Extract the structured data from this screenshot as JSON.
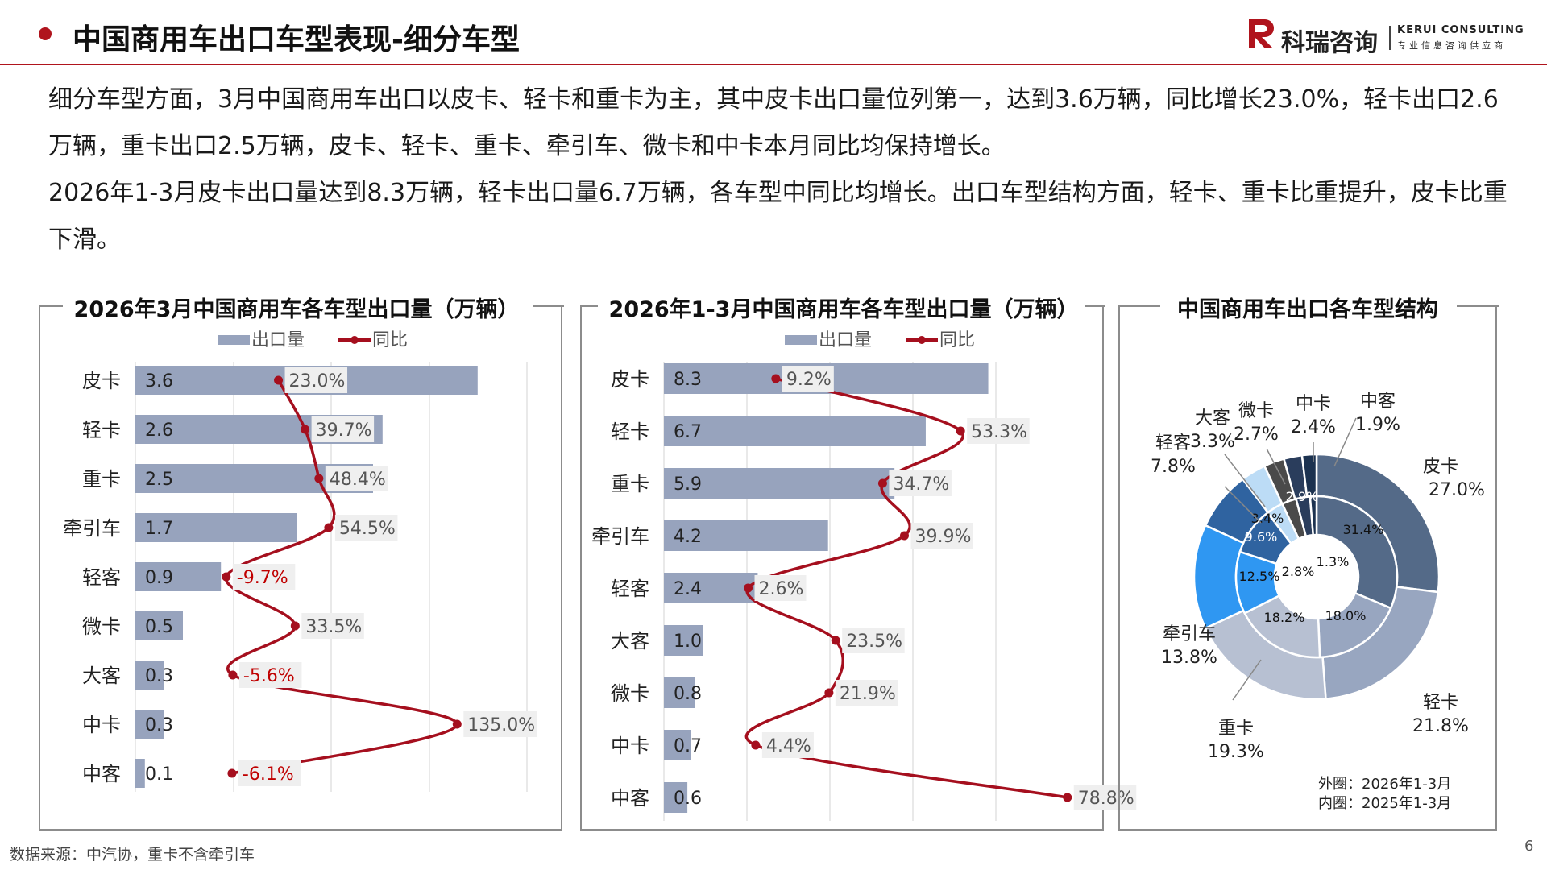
{
  "header": {
    "title": "中国商用车出口车型表现-细分车型",
    "logo_cn": "科瑞咨询",
    "logo_en": "KERUI CONSULTING",
    "logo_tag": "专业信息咨询供应商",
    "accent": "#b0141d"
  },
  "intro": {
    "p1": "细分车型方面，3月中国商用车出口以皮卡、轻卡和重卡为主，其中皮卡出口量位列第一，达到3.6万辆，同比增长23.0%，轻卡出口2.6万辆，重卡出口2.5万辆，皮卡、轻卡、重卡、牵引车、微卡和中卡本月同比均保持增长。",
    "p2": "2026年1-3月皮卡出口量达到8.3万辆，轻卡出口量6.7万辆，各车型中同比均增长。出口车型结构方面，轻卡、重卡比重提升，皮卡比重下滑。"
  },
  "footnote": "数据来源：中汽协，重卡不含牵引车",
  "page_number": "6",
  "colors": {
    "bar": "#97a3bd",
    "line": "#a50f1e",
    "neg_label": "#c00000",
    "label_bg": "#efefef"
  },
  "chart_data": [
    {
      "type": "bar",
      "title": "2026年3月中国商用车各车型出口量（万辆）",
      "orientation": "horizontal",
      "legend": [
        "出口量",
        "同比"
      ],
      "categories": [
        "皮卡",
        "轻卡",
        "重卡",
        "牵引车",
        "轻客",
        "微卡",
        "大客",
        "中卡",
        "中客"
      ],
      "series": [
        {
          "name": "出口量",
          "type": "bar",
          "values": [
            3.6,
            2.6,
            2.5,
            1.7,
            0.9,
            0.5,
            0.3,
            0.3,
            0.1
          ],
          "labels": [
            "3.6",
            "2.6",
            "2.5",
            "1.7",
            "0.9",
            "0.5",
            "0.3",
            "0.3",
            "0.1"
          ]
        },
        {
          "name": "同比",
          "type": "line",
          "values": [
            23.0,
            39.7,
            48.4,
            54.5,
            -9.7,
            33.5,
            -5.6,
            135.0,
            -6.1
          ],
          "labels": [
            "23.0%",
            "39.7%",
            "48.4%",
            "54.5%",
            "-9.7%",
            "33.5%",
            "-5.6%",
            "135.0%",
            "-6.1%"
          ]
        }
      ]
    },
    {
      "type": "bar",
      "title": "2026年1-3月中国商用车各车型出口量（万辆）",
      "orientation": "horizontal",
      "legend": [
        "出口量",
        "同比"
      ],
      "categories": [
        "皮卡",
        "轻卡",
        "重卡",
        "牵引车",
        "轻客",
        "大客",
        "微卡",
        "中卡",
        "中客"
      ],
      "series": [
        {
          "name": "出口量",
          "type": "bar",
          "values": [
            8.3,
            6.7,
            5.9,
            4.2,
            2.4,
            1.0,
            0.8,
            0.7,
            0.6
          ],
          "labels": [
            "8.3",
            "6.7",
            "5.9",
            "4.2",
            "2.4",
            "1.0",
            "0.8",
            "0.7",
            "0.6"
          ]
        },
        {
          "name": "同比",
          "type": "line",
          "values": [
            9.2,
            53.3,
            34.7,
            39.9,
            2.6,
            23.5,
            21.9,
            4.4,
            78.8
          ],
          "labels": [
            "9.2%",
            "53.3%",
            "34.7%",
            "39.9%",
            "2.6%",
            "23.5%",
            "21.9%",
            "4.4%",
            "78.8%"
          ]
        }
      ]
    },
    {
      "type": "pie",
      "title": "中国商用车出口各车型结构",
      "note_outer": "外圈：2026年1-3月",
      "note_inner": "内圈：2025年1-3月",
      "categories": [
        "皮卡",
        "轻卡",
        "重卡",
        "牵引车",
        "轻客",
        "大客",
        "微卡",
        "中卡",
        "中客"
      ],
      "colors": [
        "#546a88",
        "#98a6c0",
        "#b7c0d2",
        "#2f97f2",
        "#2f63a0",
        "#bcdcf6",
        "#4a4a4a",
        "#2a3d5c",
        "#1c3250"
      ],
      "series": [
        {
          "name": "外圈",
          "values": [
            27.0,
            21.8,
            19.3,
            13.8,
            7.8,
            3.3,
            2.7,
            2.4,
            1.9
          ],
          "labels": [
            "27.0%",
            "21.8%",
            "19.3%",
            "13.8%",
            "7.8%",
            "3.3%",
            "2.7%",
            "2.4%",
            "1.9%"
          ]
        },
        {
          "name": "内圈",
          "values": [
            31.4,
            18.0,
            18.2,
            12.5,
            9.6,
            3.4,
            2.9,
            2.8,
            1.3
          ],
          "labels": [
            "31.4%",
            "18.0%",
            "18.2%",
            "12.5%",
            "9.6%",
            "3.4%",
            "2.9%",
            "2.8%",
            "1.3%"
          ]
        }
      ]
    }
  ]
}
